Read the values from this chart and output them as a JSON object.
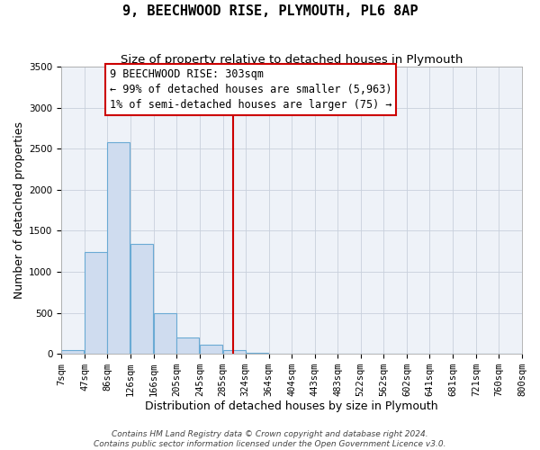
{
  "title": "9, BEECHWOOD RISE, PLYMOUTH, PL6 8AP",
  "subtitle": "Size of property relative to detached houses in Plymouth",
  "xlabel": "Distribution of detached houses by size in Plymouth",
  "ylabel": "Number of detached properties",
  "bar_left_edges": [
    7,
    47,
    86,
    126,
    166,
    205,
    245,
    285,
    324,
    364,
    404,
    443,
    483,
    522,
    562,
    602,
    641,
    681,
    721,
    760
  ],
  "bar_heights": [
    50,
    1240,
    2580,
    1340,
    500,
    200,
    110,
    40,
    15,
    5,
    2,
    1,
    0,
    0,
    0,
    0,
    0,
    0,
    0,
    0
  ],
  "bin_width": 39,
  "bar_facecolor": "#cfdcef",
  "bar_edgecolor": "#6aaad4",
  "vline_x": 303,
  "vline_color": "#cc0000",
  "annotation_line0": "9 BEECHWOOD RISE: 303sqm",
  "annotation_line1": "← 99% of detached houses are smaller (5,963)",
  "annotation_line2": "1% of semi-detached houses are larger (75) →",
  "annotation_box_edgecolor": "#cc0000",
  "annotation_box_facecolor": "#ffffff",
  "xlim": [
    7,
    800
  ],
  "ylim": [
    0,
    3500
  ],
  "xtick_labels": [
    "7sqm",
    "47sqm",
    "86sqm",
    "126sqm",
    "166sqm",
    "205sqm",
    "245sqm",
    "285sqm",
    "324sqm",
    "364sqm",
    "404sqm",
    "443sqm",
    "483sqm",
    "522sqm",
    "562sqm",
    "602sqm",
    "641sqm",
    "681sqm",
    "721sqm",
    "760sqm",
    "800sqm"
  ],
  "xtick_positions": [
    7,
    47,
    86,
    126,
    166,
    205,
    245,
    285,
    324,
    364,
    404,
    443,
    483,
    522,
    562,
    602,
    641,
    681,
    721,
    760,
    800
  ],
  "ytick_positions": [
    0,
    500,
    1000,
    1500,
    2000,
    2500,
    3000,
    3500
  ],
  "grid_color": "#c8d0dc",
  "background_color": "#eef2f8",
  "footer1": "Contains HM Land Registry data © Crown copyright and database right 2024.",
  "footer2": "Contains public sector information licensed under the Open Government Licence v3.0.",
  "title_fontsize": 11,
  "subtitle_fontsize": 9.5,
  "axis_label_fontsize": 9,
  "tick_fontsize": 7.5,
  "annotation_fontsize": 8.5,
  "footer_fontsize": 6.5
}
